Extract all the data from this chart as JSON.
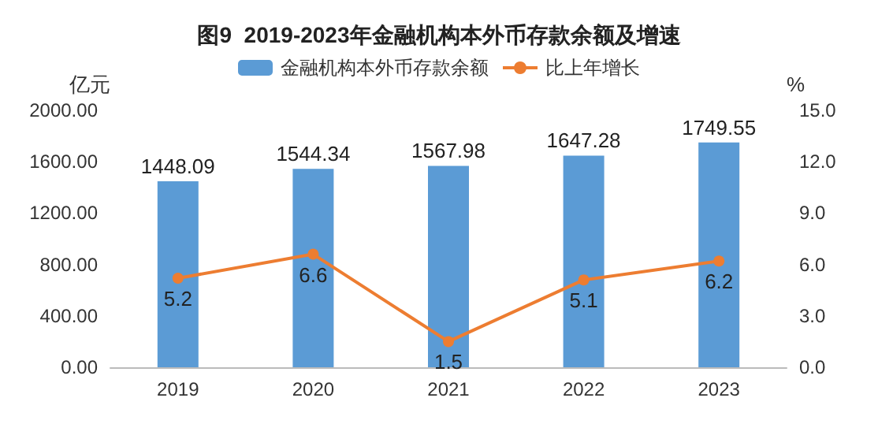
{
  "chart_data": {
    "type": "bar",
    "title": "图9  2019-2023年金融机构本外币存款余额及增速",
    "ylabel": "亿元",
    "y2label": "%",
    "categories": [
      "2019",
      "2020",
      "2021",
      "2022",
      "2023"
    ],
    "series": [
      {
        "name": "金融机构本外币存款余额",
        "color": "#5b9bd5",
        "values": [
          1448.09,
          1544.34,
          1567.98,
          1647.28,
          1749.55
        ]
      },
      {
        "name": "比上年增长",
        "type": "line",
        "axis": "y2",
        "color": "#ed7d31",
        "values": [
          5.2,
          6.6,
          1.5,
          5.1,
          6.2
        ]
      }
    ],
    "ylim": [
      0,
      2000
    ],
    "yticks": [
      {
        "value": 0,
        "label": "0.00"
      },
      {
        "value": 400,
        "label": "400.00"
      },
      {
        "value": 800,
        "label": "800.00"
      },
      {
        "value": 1200,
        "label": "1200.00"
      },
      {
        "value": 1600,
        "label": "1600.00"
      },
      {
        "value": 2000,
        "label": "2000.00"
      }
    ],
    "y2lim": [
      0,
      15
    ],
    "y2ticks": [
      {
        "value": 0,
        "label": "0.0"
      },
      {
        "value": 3,
        "label": "3.0"
      },
      {
        "value": 6,
        "label": "6.0"
      },
      {
        "value": 9,
        "label": "9.0"
      },
      {
        "value": 12,
        "label": "12.0"
      },
      {
        "value": 15,
        "label": "15.0"
      }
    ],
    "data_labels": true,
    "legend": "top",
    "grid": false,
    "marker": "circle",
    "line_style": "solid"
  }
}
